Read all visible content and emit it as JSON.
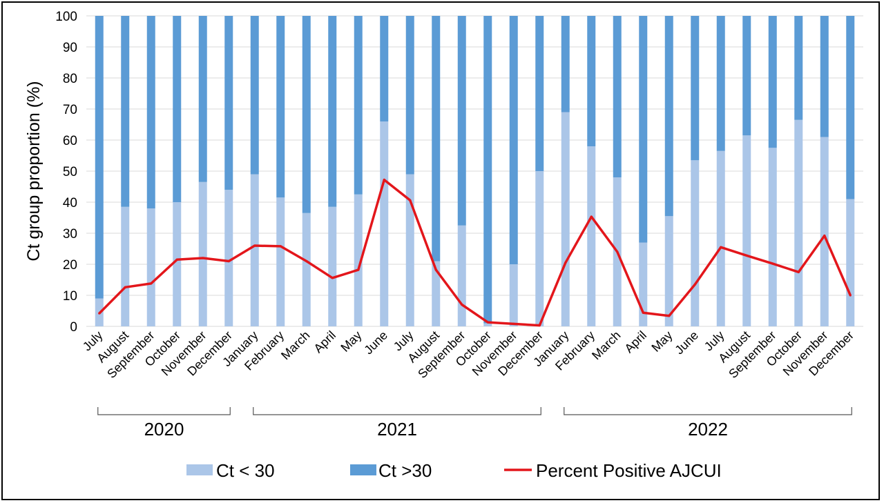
{
  "chart_data": {
    "type": "bar",
    "stacked": true,
    "ylabel": "Ct group proportion  (%)",
    "ylim": [
      0,
      100
    ],
    "yticks": [
      0,
      10,
      20,
      30,
      40,
      50,
      60,
      70,
      80,
      90,
      100
    ],
    "grid": true,
    "legend_position": "bottom",
    "categories": [
      "July",
      "August",
      "September",
      "October",
      "November",
      "December",
      "January",
      "February",
      "March",
      "April",
      "May",
      "June",
      "July",
      "August",
      "September",
      "October",
      "November",
      "December",
      "January",
      "February",
      "March",
      "April",
      "May",
      "June",
      "July",
      "August",
      "September",
      "October",
      "November",
      "December"
    ],
    "year_groups": [
      {
        "label": "2020",
        "from": 0,
        "to": 5
      },
      {
        "label": "2021",
        "from": 6,
        "to": 17
      },
      {
        "label": "2022",
        "from": 18,
        "to": 29
      }
    ],
    "series": [
      {
        "name": "Ct < 30",
        "kind": "bar",
        "color": "#abc6e8",
        "values": [
          9,
          38.5,
          38,
          40,
          46.5,
          44,
          49,
          41.5,
          36.5,
          38.5,
          42.5,
          66,
          49,
          21,
          32.5,
          1,
          20,
          50,
          69,
          58,
          48,
          27,
          35.5,
          53.5,
          56.5,
          61.5,
          57.5,
          66.5,
          61,
          41
        ]
      },
      {
        "name": "Ct >30",
        "kind": "bar",
        "color": "#5b9bd5",
        "values": [
          91,
          61.5,
          62,
          60,
          53.5,
          56,
          51,
          58.5,
          63.5,
          61.5,
          57.5,
          34,
          51,
          79,
          67.5,
          99,
          80,
          50,
          31,
          42,
          52,
          73,
          64.5,
          46.5,
          43.5,
          38.5,
          42.5,
          33.5,
          39,
          59
        ]
      },
      {
        "name": "Percent Positive AJCUI",
        "kind": "line",
        "color": "#e3161b",
        "values": [
          4.2,
          12.6,
          13.8,
          21.5,
          22,
          21,
          26,
          25.8,
          21,
          15.6,
          18.2,
          47.2,
          40.6,
          18.2,
          7,
          1.3,
          0.8,
          0.3,
          20.5,
          35.3,
          24,
          4.4,
          3.4,
          13.5,
          25.5,
          22.8,
          20.2,
          17.5,
          29.2,
          10
        ]
      }
    ]
  }
}
